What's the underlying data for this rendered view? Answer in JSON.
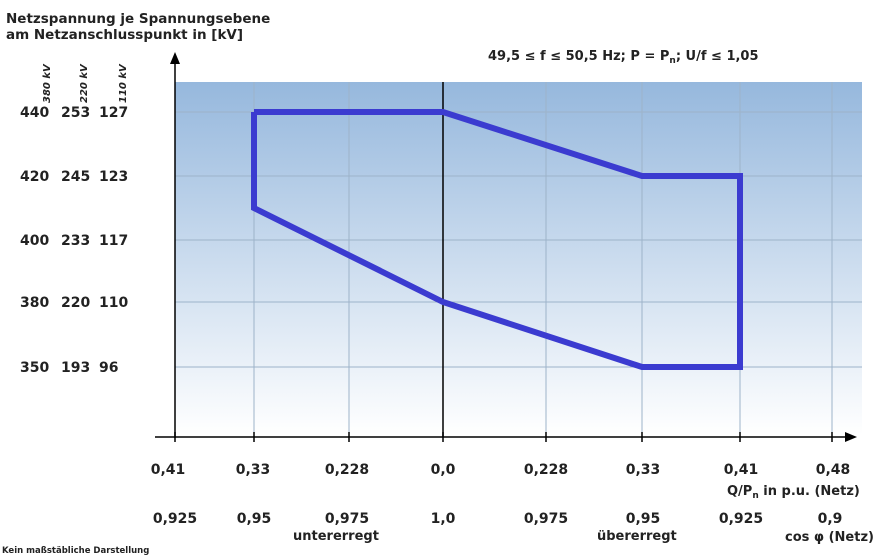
{
  "chart_data": {
    "type": "line",
    "title_lines": [
      "Netzspannung je Spannungsebene",
      "am Netzanschlusspunkt in [kV]"
    ],
    "condition": "49,5 ≤ f ≤ 50,5 Hz; P = P",
    "condition_sub": "n",
    "condition_tail": "; U/f ≤ 1,05",
    "levels": [
      "380 kV",
      "220 kV",
      "110 kV"
    ],
    "y_rows": [
      {
        "v380": "440",
        "v220": "253",
        "v110": "127"
      },
      {
        "v380": "420",
        "v220": "245",
        "v110": "123"
      },
      {
        "v380": "400",
        "v220": "233",
        "v110": "117"
      },
      {
        "v380": "380",
        "v220": "220",
        "v110": "110"
      },
      {
        "v380": "350",
        "v220": "193",
        "v110": "96"
      }
    ],
    "q_ticks": [
      "0,41",
      "0,33",
      "0,228",
      "0,0",
      "0,228",
      "0,33",
      "0,41",
      "0,48"
    ],
    "q_values": [
      -0.41,
      -0.33,
      -0.228,
      0.0,
      0.228,
      0.33,
      0.41,
      0.48
    ],
    "cos_ticks": [
      "0,925",
      "0,95",
      "0,975",
      "1,0",
      "0,975",
      "0,95",
      "0,925",
      "0,9"
    ],
    "xlabel_q": "Q/P",
    "xlabel_q_sub": "n",
    "xlabel_q_tail": " in p.u. (Netz)",
    "xlabel_cos": "cos φ (Netz)",
    "region_left": "untererregt",
    "region_right": "übererregt",
    "footnote": "Kein maßstäbliche Darstellung",
    "series": [
      {
        "points": [
          {
            "x": -0.33,
            "y": 440
          },
          {
            "x": 0.0,
            "y": 440
          },
          {
            "x": 0.33,
            "y": 420
          },
          {
            "x": 0.41,
            "y": 420
          },
          {
            "x": 0.41,
            "y": 350
          },
          {
            "x": 0.33,
            "y": 350
          },
          {
            "x": 0.0,
            "y": 380
          },
          {
            "x": -0.33,
            "y": 410
          },
          {
            "x": -0.33,
            "y": 440
          }
        ]
      }
    ],
    "colors": {
      "line": "#3b3bd0",
      "bg_top": "#96b8dd",
      "bg_bottom": "#ffffff",
      "grid": "#9db3c9"
    }
  }
}
